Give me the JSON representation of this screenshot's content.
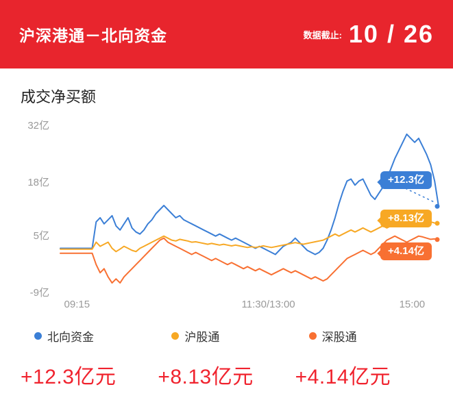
{
  "header": {
    "title": "沪深港通－北向资金",
    "cutoff_label": "数据截止:",
    "cutoff_date": "10 / 26",
    "bg_color": "#e8252d"
  },
  "section": {
    "title": "成交净买额"
  },
  "chart_data": {
    "type": "line",
    "title": "成交净买额",
    "xlabel": "",
    "ylabel": "",
    "ylim": [
      -9,
      32
    ],
    "grid": false,
    "legend_position": "bottom",
    "y_ticks": [
      {
        "value": 32,
        "label": "32亿"
      },
      {
        "value": 18,
        "label": "18亿"
      },
      {
        "value": 5,
        "label": "5亿"
      },
      {
        "value": -9,
        "label": "-9亿"
      }
    ],
    "x_ticks": [
      {
        "pos": 0.01,
        "label": "09:15"
      },
      {
        "pos": 0.55,
        "label": "11:30/13:00"
      },
      {
        "pos": 0.93,
        "label": "15:00"
      }
    ],
    "series": [
      {
        "name": "北向资金",
        "color": "#3b7fd6",
        "end_label": "+12.3亿",
        "end_value": 12.3,
        "values": [
          2,
          2,
          2,
          2,
          2,
          2,
          2,
          2,
          2,
          8.5,
          9.5,
          8,
          9,
          10,
          7.5,
          6.5,
          8,
          9.5,
          7,
          6,
          5.5,
          6.5,
          8,
          9,
          10.5,
          11.5,
          12.5,
          11.5,
          10.5,
          9.5,
          10,
          9,
          8.5,
          8,
          7.5,
          7,
          6.5,
          6,
          5.5,
          5,
          5.5,
          5,
          4.5,
          4,
          4.5,
          4,
          3.5,
          3,
          2.5,
          2,
          2.5,
          2,
          1.5,
          1,
          0.5,
          1.5,
          2.5,
          3,
          3.5,
          4.5,
          3.5,
          2.5,
          1.5,
          1,
          0.5,
          1,
          2,
          4,
          6.5,
          9.5,
          13,
          16,
          18.5,
          19,
          17.5,
          18.5,
          19,
          17,
          15,
          14,
          15.5,
          17,
          19,
          21.5,
          24,
          26,
          28,
          30,
          29,
          28,
          29,
          27,
          25,
          22.5,
          18.5,
          12.3
        ]
      },
      {
        "name": "沪股通",
        "color": "#f7a824",
        "end_label": "+8.13亿",
        "end_value": 8.13,
        "values": [
          1.8,
          1.8,
          1.8,
          1.8,
          1.8,
          1.8,
          1.8,
          1.8,
          1.8,
          3.5,
          2.5,
          3,
          3.5,
          2,
          1.2,
          1.8,
          2.5,
          2,
          1.5,
          1.2,
          2,
          2.5,
          3,
          3.5,
          4,
          4.5,
          5,
          4.5,
          4,
          3.8,
          4.2,
          4,
          3.8,
          3.5,
          3.6,
          3.4,
          3.2,
          3,
          3.2,
          3,
          2.8,
          3,
          2.8,
          2.6,
          2.8,
          2.6,
          2.4,
          2.2,
          2.4,
          2.2,
          2.4,
          2.6,
          2.4,
          2.2,
          2.4,
          2.6,
          2.8,
          3,
          3.2,
          3.4,
          3.2,
          3,
          3.2,
          3.4,
          3.6,
          3.8,
          4,
          4.5,
          5,
          5.5,
          5,
          5.5,
          6,
          6.5,
          6,
          6.5,
          7,
          6.5,
          6,
          6.5,
          7,
          7.5,
          7,
          7.5,
          8,
          8.5,
          9,
          8.5,
          8,
          8.5,
          9,
          8.5,
          8,
          8.5,
          8.2,
          8.13
        ]
      },
      {
        "name": "深股通",
        "color": "#f87032",
        "end_label": "+4.14亿",
        "end_value": 4.14,
        "values": [
          0.8,
          0.8,
          0.8,
          0.8,
          0.8,
          0.8,
          0.8,
          0.8,
          0.8,
          -2,
          -4,
          -3,
          -5,
          -6.5,
          -5.5,
          -6.5,
          -5,
          -4,
          -3,
          -2,
          -1,
          0,
          1,
          2,
          3,
          4,
          4.5,
          3.5,
          3,
          2.5,
          2,
          1.5,
          1,
          0.5,
          1,
          0.5,
          0,
          -0.5,
          -1,
          -0.5,
          -1,
          -1.5,
          -2,
          -1.5,
          -2,
          -2.5,
          -3,
          -2.5,
          -3,
          -3.5,
          -3,
          -3.5,
          -4,
          -4.5,
          -4,
          -3.5,
          -3,
          -3.5,
          -4,
          -3.5,
          -4,
          -4.5,
          -5,
          -5.5,
          -5,
          -5.5,
          -6,
          -5.5,
          -4.5,
          -3.5,
          -2.5,
          -1.5,
          -0.5,
          0,
          0.5,
          1,
          1.5,
          1,
          0.5,
          1,
          2,
          3,
          4,
          4.5,
          5,
          4.5,
          4,
          3.5,
          4,
          4.5,
          5,
          4.8,
          4.5,
          4.2,
          4.3,
          4.14
        ]
      }
    ]
  },
  "legend": {
    "items": [
      {
        "label": "北向资金",
        "color": "#3b7fd6"
      },
      {
        "label": "沪股通",
        "color": "#f7a824"
      },
      {
        "label": "深股通",
        "color": "#f87032"
      }
    ]
  },
  "summary": {
    "color": "#f0232e",
    "values": [
      {
        "text": "+12.3亿元"
      },
      {
        "text": "+8.13亿元"
      },
      {
        "text": "+4.14亿元"
      }
    ]
  }
}
